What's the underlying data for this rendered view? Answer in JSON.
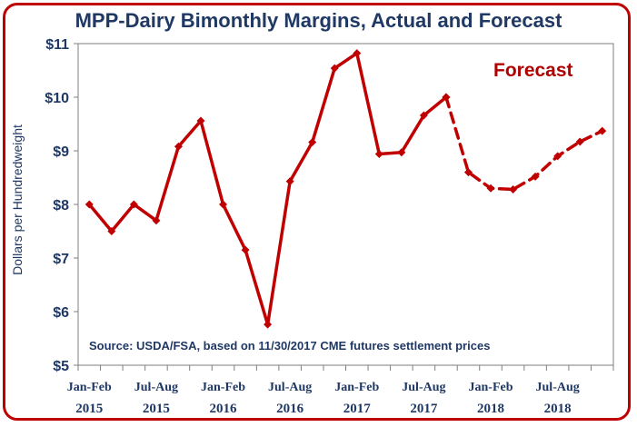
{
  "chart_data": {
    "type": "line",
    "title": "MPP-Dairy Bimonthly Margins, Actual and Forecast",
    "xlabel": "",
    "ylabel": "Dollars per Hundredweight",
    "ylim": [
      5,
      11
    ],
    "yticks": [
      5,
      6,
      7,
      8,
      9,
      10,
      11
    ],
    "ytick_labels": [
      "$5",
      "$6",
      "$7",
      "$8",
      "$9",
      "$10",
      "$11"
    ],
    "x": [
      "Jan-Feb 2015",
      "Mar-Apr 2015",
      "May-Jun 2015",
      "Jul-Aug 2015",
      "Sep-Oct 2015",
      "Nov-Dec 2015",
      "Jan-Feb 2016",
      "Mar-Apr 2016",
      "May-Jun 2016",
      "Jul-Aug 2016",
      "Sep-Oct 2016",
      "Nov-Dec 2016",
      "Jan-Feb 2017",
      "Mar-Apr 2017",
      "May-Jun 2017",
      "Jul-Aug 2017",
      "Sep-Oct 2017",
      "Nov-Dec 2017",
      "Jan-Feb 2018",
      "Mar-Apr 2018",
      "May-Jun 2018",
      "Jul-Aug 2018",
      "Sep-Oct 2018",
      "Nov-Dec 2018"
    ],
    "xtick_labels": [
      {
        "index": 0,
        "line1": "Jan-Feb",
        "line2": "2015"
      },
      {
        "index": 3,
        "line1": "Jul-Aug",
        "line2": "2015"
      },
      {
        "index": 6,
        "line1": "Jan-Feb",
        "line2": "2016"
      },
      {
        "index": 9,
        "line1": "Jul-Aug",
        "line2": "2016"
      },
      {
        "index": 12,
        "line1": "Jan-Feb",
        "line2": "2017"
      },
      {
        "index": 15,
        "line1": "Jul-Aug",
        "line2": "2017"
      },
      {
        "index": 18,
        "line1": "Jan-Feb",
        "line2": "2018"
      },
      {
        "index": 21,
        "line1": "Jul-Aug",
        "line2": "2018"
      }
    ],
    "series": [
      {
        "style": "solid",
        "values": [
          8.0,
          7.5,
          8.0,
          7.7,
          9.08,
          9.56,
          8.0,
          7.15,
          5.76,
          8.43,
          9.16,
          10.54,
          10.82,
          8.94,
          8.97,
          9.66,
          10.0,
          null,
          null,
          null,
          null,
          null,
          null,
          null
        ]
      },
      {
        "style": "dashed",
        "values": [
          null,
          null,
          null,
          null,
          null,
          null,
          null,
          null,
          null,
          null,
          null,
          null,
          null,
          null,
          null,
          null,
          10.0,
          8.6,
          8.3,
          8.28,
          8.52,
          8.9,
          9.17,
          9.37
        ]
      }
    ],
    "color": "#c00000",
    "grid": false,
    "annotations": [
      {
        "text": "Forecast",
        "color": "#b00000"
      },
      {
        "text": "Source:  USDA/FSA, based on 11/30/2017 CME futures settlement prices"
      }
    ]
  }
}
